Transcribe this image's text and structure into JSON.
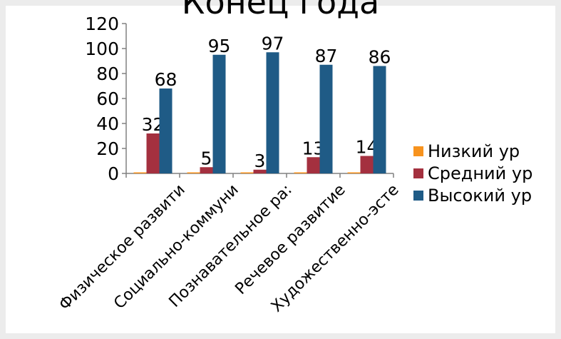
{
  "title": "Конец года",
  "chart_data": {
    "type": "bar",
    "categories": [
      "Физическое развитие",
      "Социально-коммуникативное",
      "Познавательное развитие",
      "Речевое развитие",
      "Художественно-эстетическое"
    ],
    "category_labels": [
      "Физическое развити",
      "Социально-коммуни",
      "Познавательное ра:",
      "Речевое развитие",
      "Художественно-эсте"
    ],
    "series": [
      {
        "name": "Низкий ур",
        "color": "#f7931e",
        "values": [
          0,
          0,
          0,
          0,
          0
        ],
        "labels": [
          "",
          "",
          "",
          "",
          ""
        ]
      },
      {
        "name": "Средний ур",
        "color": "#a4303f",
        "values": [
          32,
          5,
          3,
          13,
          14
        ],
        "labels": [
          "32",
          "5",
          "3",
          "13",
          "14"
        ]
      },
      {
        "name": "Высокий ур",
        "color": "#1f5b86",
        "values": [
          68,
          95,
          97,
          87,
          86
        ],
        "labels": [
          "68",
          "95",
          "97",
          "87",
          "86"
        ]
      }
    ],
    "ylim": [
      0,
      120
    ],
    "yticks": [
      0,
      20,
      40,
      60,
      80,
      100,
      120
    ],
    "xlabel": "",
    "ylabel": "",
    "legend": "right",
    "grid": false
  }
}
